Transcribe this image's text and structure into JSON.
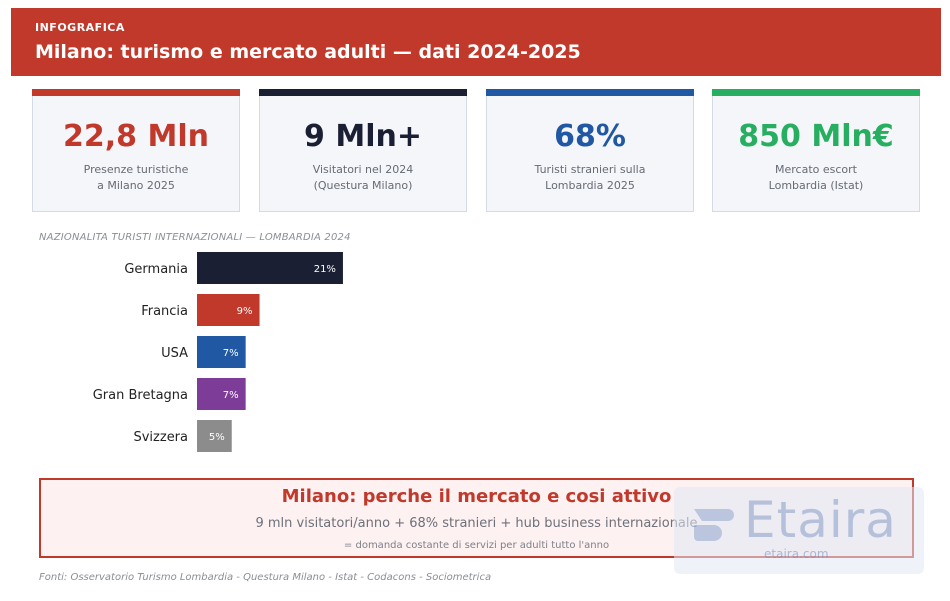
{
  "header": {
    "eyebrow": "INFOGRAFICA",
    "title": "Milano: turismo e mercato adulti — dati 2024-2025",
    "color": "#c0392b"
  },
  "cards": [
    {
      "value": "22,8 Mln",
      "caption": "Presenze turistiche\na Milano 2025",
      "color": "#c0392b"
    },
    {
      "value": "9 Mln+",
      "caption": "Visitatori nel 2024\n(Questura Milano)",
      "color": "#1b1f33"
    },
    {
      "value": "68%",
      "caption": "Turisti stranieri sulla\nLombardia 2025",
      "color": "#2158a3"
    },
    {
      "value": "850 Mln€",
      "caption": "Mercato escort\nLombardia (Istat)",
      "color": "#27ae60"
    }
  ],
  "chart_data": {
    "type": "bar",
    "orientation": "horizontal",
    "title": "NAZIONALITA TURISTI INTERNAZIONALI — LOMBARDIA 2024",
    "categories": [
      "Germania",
      "Francia",
      "USA",
      "Gran Bretagna",
      "Svizzera"
    ],
    "values": [
      21,
      9,
      7,
      7,
      5
    ],
    "value_labels": [
      "21%",
      "9%",
      "7%",
      "7%",
      "5%"
    ],
    "colors": [
      "#1b1f33",
      "#c0392b",
      "#2158a3",
      "#7d3c98",
      "#8c8c8c"
    ],
    "xlim": [
      0,
      100
    ],
    "grid": false
  },
  "callout": {
    "title": "Milano: perche il mercato e cosi attivo",
    "subtitle": "9 mln visitatori/anno + 68% stranieri + hub business internazionale",
    "note": "= domanda costante di servizi per adulti tutto l'anno"
  },
  "watermark": {
    "brand": "Etaira",
    "url": "etaira.com",
    "logo_icon": "etaira-logo-icon"
  },
  "sources": "Fonti: Osservatorio Turismo Lombardia - Questura Milano - Istat - Codacons - Sociometrica"
}
